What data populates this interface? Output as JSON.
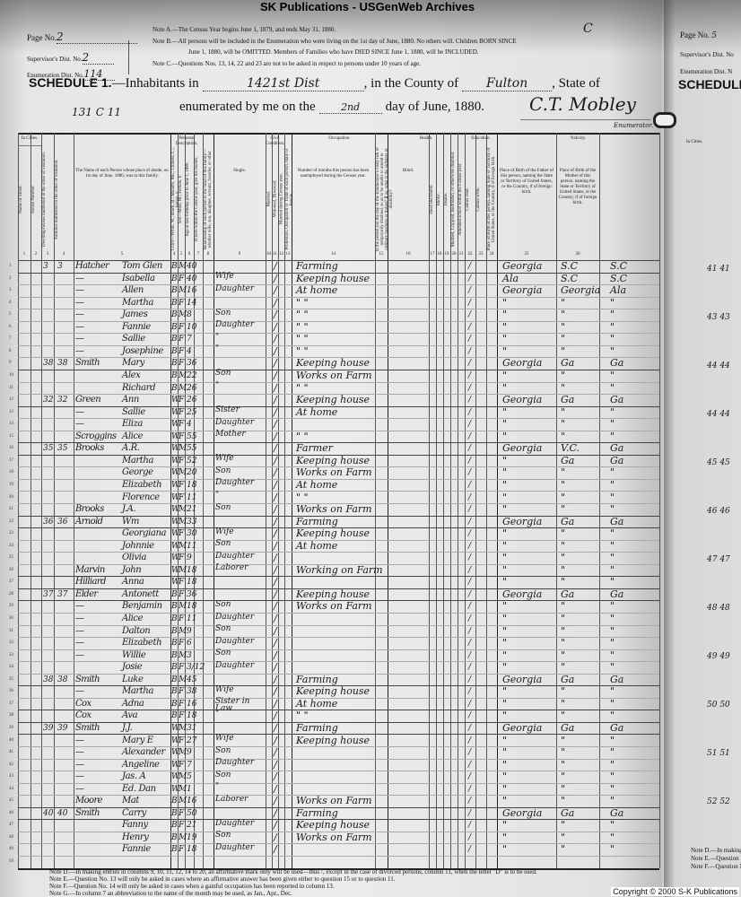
{
  "banner": "SK Publications - USGenWeb Archives",
  "header": {
    "page_label": "Page No.",
    "page_value": "2",
    "supervisor_label": "Supervisor's Dist. No.",
    "supervisor_value": "2",
    "enumeration_label": "Enumeration Dist. No.",
    "enumeration_value": "114",
    "note_a": "Note A.—The Census Year begins June 1, 1879, and ends May 31, 1880.",
    "note_b1": "Note B.—All persons will be included in the Enumeration who were living on the 1st day of June, 1880. No others will. Children BORN SINCE",
    "note_b2": "June 1, 1880, will be OMITTED. Members of Families who have DIED SINCE June 1, 1880, will be INCLUDED.",
    "note_c": "Note C.—Questions Nos. 13, 14, 22 and 23 are not to be asked in respect to persons under 10 years of age.",
    "corner_mark": "C",
    "schedule_label": "SCHEDULE 1.",
    "inhabitants_label": "—Inhabitants in",
    "inhabitants_value": "1421st Dist",
    "county_label": ", in the County of",
    "county_value": "Fulton",
    "state_label": ", State of",
    "enumerated_label": "enumerated by me on the",
    "day_value": "2nd",
    "day_label": "day of June, 1880.",
    "margin_note": "131 C 11",
    "enumerator_signature": "C.T. Mobley",
    "enumerator_label": "Enumerator."
  },
  "column_groups": {
    "in_cities": "In Cities.",
    "personal": "Personal Description.",
    "civil": "Civil Condition.",
    "occupation": "Occupation.",
    "health": "Health.",
    "education": "Education.",
    "nativity": "Nativity."
  },
  "columns": [
    {
      "num": "1",
      "label": "Name of Street."
    },
    {
      "num": "2",
      "label": "House Number."
    },
    {
      "num": "3",
      "label": "Dwelling-houses numbered in the order of visitation."
    },
    {
      "num": "4",
      "label": "Families numbered in the order of visitation."
    },
    {
      "num": "5",
      "label": "The Name of each Person whose place of abode, on 1st day of June, 1880, was in this family."
    },
    {
      "num": "4",
      "label": "Color—White, W.; Black, B.; Mulatto, Mu.; Chinese, C.; Indian, I."
    },
    {
      "num": "5",
      "label": "Sex—Male, M.; Female, F."
    },
    {
      "num": "6",
      "label": "Age at last birthday prior to June 1, 1880."
    },
    {
      "num": "7",
      "label": "If born within the Census year, give the month."
    },
    {
      "num": "8",
      "label": "Relationship of each person to the head of this family—whether wife, son, daughter, servant, boarder, or other."
    },
    {
      "num": "9",
      "label": "Single."
    },
    {
      "num": "10",
      "label": "Married."
    },
    {
      "num": "11",
      "label": "Widowed, Divorced."
    },
    {
      "num": "12",
      "label": "Married during Census year."
    },
    {
      "num": "13",
      "label": "Profession, Occupation or Trade of each person, male or female."
    },
    {
      "num": "14",
      "label": "Number of months this person has been unemployed during the Census year."
    },
    {
      "num": "15",
      "label": "Is the person (on the day of the Enumerator's visit) sick or temporarily disabled, so as to be unable to attend to ordinary business or duties? If so, what is the sickness or disability?"
    },
    {
      "num": "16",
      "label": "Blind."
    },
    {
      "num": "17",
      "label": "Deaf and Dumb."
    },
    {
      "num": "18",
      "label": "Idiotic."
    },
    {
      "num": "19",
      "label": "Insane."
    },
    {
      "num": "20",
      "label": "Maimed, Crippled, Bedridden, or otherwise disabled."
    },
    {
      "num": "21",
      "label": "Attended school within the Census year."
    },
    {
      "num": "22",
      "label": "Cannot read."
    },
    {
      "num": "23",
      "label": "Cannot write."
    },
    {
      "num": "24",
      "label": "Place of Birth of this person, naming State or Territory of United States, or the Country, if of foreign birth."
    },
    {
      "num": "25",
      "label": "Place of Birth of the Father of this person, naming the State or Territory of United States, or the Country, if of foreign birth."
    },
    {
      "num": "26",
      "label": "Place of Birth of the Mother of this person, naming the State or Territory of United States, or the Country, if of foreign birth."
    }
  ],
  "rows": [
    {
      "n": "1",
      "dw": "3",
      "fam": "3",
      "surname": "Hatcher",
      "given": "Tom Glen",
      "color": "B",
      "sex": "M",
      "age": "40",
      "rel": "",
      "mark": "/",
      "occ": "Farming",
      "bp": "Georgia",
      "fbp": "S.C",
      "mbp": "S.C"
    },
    {
      "n": "2",
      "dw": "",
      "fam": "",
      "surname": "—",
      "given": "Isabella",
      "color": "B",
      "sex": "F",
      "age": "40",
      "rel": "Wife",
      "mark": "/",
      "occ": "Keeping house",
      "bp": "Ala",
      "fbp": "S.C",
      "mbp": "S.C"
    },
    {
      "n": "3",
      "dw": "",
      "fam": "",
      "surname": "—",
      "given": "Allen",
      "color": "B",
      "sex": "M",
      "age": "16",
      "rel": "Daughter",
      "mark": "/",
      "occ": "At home",
      "bp": "Georgia",
      "fbp": "Georgia",
      "mbp": "Ala"
    },
    {
      "n": "4",
      "dw": "",
      "fam": "",
      "surname": "—",
      "given": "Martha",
      "color": "B",
      "sex": "F",
      "age": "14",
      "rel": "",
      "mark": "/",
      "occ": "\"   \"",
      "bp": "\"",
      "fbp": "\"",
      "mbp": "\""
    },
    {
      "n": "5",
      "dw": "",
      "fam": "",
      "surname": "—",
      "given": "James",
      "color": "B",
      "sex": "M",
      "age": "8",
      "rel": "Son",
      "mark": "/",
      "occ": "\"   \"",
      "bp": "\"",
      "fbp": "\"",
      "mbp": "\""
    },
    {
      "n": "6",
      "dw": "",
      "fam": "",
      "surname": "—",
      "given": "Fannie",
      "color": "B",
      "sex": "F",
      "age": "10",
      "rel": "Daughter",
      "mark": "/",
      "occ": "\"   \"",
      "bp": "\"",
      "fbp": "\"",
      "mbp": "\""
    },
    {
      "n": "7",
      "dw": "",
      "fam": "",
      "surname": "—",
      "given": "Sallie",
      "color": "B",
      "sex": "F",
      "age": "7",
      "rel": "\"",
      "mark": "/",
      "occ": "\"   \"",
      "bp": "\"",
      "fbp": "\"",
      "mbp": "\""
    },
    {
      "n": "8",
      "dw": "",
      "fam": "",
      "surname": "—",
      "given": "Josephine",
      "color": "B",
      "sex": "F",
      "age": "4",
      "rel": "\"",
      "mark": "/",
      "occ": "\"   \"",
      "bp": "\"",
      "fbp": "\"",
      "mbp": "\""
    },
    {
      "n": "9",
      "dw": "38",
      "fam": "38",
      "surname": "Smith",
      "given": "Mary",
      "color": "B",
      "sex": "F",
      "age": "36",
      "rel": "",
      "mark": "/",
      "occ": "Keeping house",
      "bp": "Georgia",
      "fbp": "Ga",
      "mbp": "Ga"
    },
    {
      "n": "10",
      "dw": "",
      "fam": "",
      "surname": "",
      "given": "Alex",
      "color": "B",
      "sex": "M",
      "age": "22",
      "rel": "Son",
      "mark": "/",
      "occ": "Works on Farm",
      "bp": "\"",
      "fbp": "\"",
      "mbp": "\""
    },
    {
      "n": "11",
      "dw": "",
      "fam": "",
      "surname": "",
      "given": "Richard",
      "color": "B",
      "sex": "M",
      "age": "26",
      "rel": "\"",
      "mark": "/",
      "occ": "\"   \"",
      "bp": "\"",
      "fbp": "\"",
      "mbp": "\""
    },
    {
      "n": "12",
      "dw": "32",
      "fam": "32",
      "surname": "Green",
      "given": "Ann",
      "color": "W",
      "sex": "F",
      "age": "26",
      "rel": "",
      "mark": "/",
      "occ": "Keeping house",
      "bp": "Georgia",
      "fbp": "Ga",
      "mbp": "Ga"
    },
    {
      "n": "13",
      "dw": "",
      "fam": "",
      "surname": "—",
      "given": "Sallie",
      "color": "W",
      "sex": "F",
      "age": "25",
      "rel": "Sister",
      "mark": "/",
      "occ": "At home",
      "bp": "\"",
      "fbp": "\"",
      "mbp": "\""
    },
    {
      "n": "14",
      "dw": "",
      "fam": "",
      "surname": "—",
      "given": "Eliza",
      "color": "W",
      "sex": "F",
      "age": "4",
      "rel": "Daughter",
      "mark": "/",
      "occ": "",
      "bp": "\"",
      "fbp": "\"",
      "mbp": "\""
    },
    {
      "n": "15",
      "dw": "",
      "fam": "",
      "surname": "Scroggins",
      "given": "Alice",
      "color": "W",
      "sex": "F",
      "age": "55",
      "rel": "Mother",
      "mark": "/",
      "occ": "\"   \"",
      "bp": "\"",
      "fbp": "\"",
      "mbp": "\""
    },
    {
      "n": "16",
      "dw": "35",
      "fam": "35",
      "surname": "Brooks",
      "given": "A.R.",
      "color": "W",
      "sex": "M",
      "age": "55",
      "rel": "",
      "mark": "/",
      "occ": "Farmer",
      "bp": "Georgia",
      "fbp": "V.C.",
      "mbp": "Ga"
    },
    {
      "n": "17",
      "dw": "",
      "fam": "",
      "surname": "",
      "given": "Martha",
      "color": "W",
      "sex": "F",
      "age": "52",
      "rel": "Wife",
      "mark": "/",
      "occ": "Keeping house",
      "bp": "\"",
      "fbp": "Ga",
      "mbp": "Ga"
    },
    {
      "n": "18",
      "dw": "",
      "fam": "",
      "surname": "",
      "given": "George",
      "color": "W",
      "sex": "M",
      "age": "20",
      "rel": "Son",
      "mark": "/",
      "occ": "Works on Farm",
      "bp": "\"",
      "fbp": "\"",
      "mbp": "\""
    },
    {
      "n": "19",
      "dw": "",
      "fam": "",
      "surname": "",
      "given": "Elizabeth",
      "color": "W",
      "sex": "F",
      "age": "18",
      "rel": "Daughter",
      "mark": "/",
      "occ": "At home",
      "bp": "\"",
      "fbp": "\"",
      "mbp": "\""
    },
    {
      "n": "20",
      "dw": "",
      "fam": "",
      "surname": "",
      "given": "Florence",
      "color": "W",
      "sex": "F",
      "age": "11",
      "rel": "\"",
      "mark": "/",
      "occ": "\"   \"",
      "bp": "\"",
      "fbp": "\"",
      "mbp": "\""
    },
    {
      "n": "21",
      "dw": "",
      "fam": "",
      "surname": "Brooks",
      "given": "J.A.",
      "color": "W",
      "sex": "M",
      "age": "21",
      "rel": "Son",
      "mark": "/",
      "occ": "Works on Farm",
      "bp": "\"",
      "fbp": "\"",
      "mbp": "\""
    },
    {
      "n": "22",
      "dw": "36",
      "fam": "36",
      "surname": "Arnold",
      "given": "Wm",
      "color": "W",
      "sex": "M",
      "age": "33",
      "rel": "",
      "mark": "/",
      "occ": "Farming",
      "bp": "Georgia",
      "fbp": "Ga",
      "mbp": "Ga"
    },
    {
      "n": "23",
      "dw": "",
      "fam": "",
      "surname": "",
      "given": "Georgiana",
      "color": "W",
      "sex": "F",
      "age": "30",
      "rel": "Wife",
      "mark": "/",
      "occ": "Keeping house",
      "bp": "\"",
      "fbp": "\"",
      "mbp": "\""
    },
    {
      "n": "24",
      "dw": "",
      "fam": "",
      "surname": "",
      "given": "Johnnie",
      "color": "W",
      "sex": "M",
      "age": "11",
      "rel": "Son",
      "mark": "/",
      "occ": "At home",
      "bp": "\"",
      "fbp": "\"",
      "mbp": "\""
    },
    {
      "n": "25",
      "dw": "",
      "fam": "",
      "surname": "",
      "given": "Olivia",
      "color": "W",
      "sex": "F",
      "age": "9",
      "rel": "Daughter",
      "mark": "/",
      "occ": "",
      "bp": "\"",
      "fbp": "\"",
      "mbp": "\""
    },
    {
      "n": "26",
      "dw": "",
      "fam": "",
      "surname": "Marvin",
      "given": "John",
      "color": "W",
      "sex": "M",
      "age": "18",
      "rel": "Laborer",
      "mark": "/",
      "occ": "Working on Farm",
      "bp": "\"",
      "fbp": "\"",
      "mbp": "\""
    },
    {
      "n": "27",
      "dw": "",
      "fam": "",
      "surname": "Hilliard",
      "given": "Anna",
      "color": "W",
      "sex": "F",
      "age": "18",
      "rel": "",
      "mark": "/",
      "occ": "",
      "bp": "\"",
      "fbp": "\"",
      "mbp": "\""
    },
    {
      "n": "28",
      "dw": "37",
      "fam": "37",
      "surname": "Elder",
      "given": "Antonett",
      "color": "B",
      "sex": "F",
      "age": "36",
      "rel": "",
      "mark": "/",
      "occ": "Keeping house",
      "bp": "Georgia",
      "fbp": "Ga",
      "mbp": "Ga"
    },
    {
      "n": "29",
      "dw": "",
      "fam": "",
      "surname": "—",
      "given": "Benjamin",
      "color": "B",
      "sex": "M",
      "age": "18",
      "rel": "Son",
      "mark": "/",
      "occ": "Works on Farm",
      "bp": "\"",
      "fbp": "\"",
      "mbp": "\""
    },
    {
      "n": "30",
      "dw": "",
      "fam": "",
      "surname": "—",
      "given": "Alice",
      "color": "B",
      "sex": "F",
      "age": "11",
      "rel": "Daughter",
      "mark": "/",
      "occ": "",
      "bp": "\"",
      "fbp": "\"",
      "mbp": "\""
    },
    {
      "n": "31",
      "dw": "",
      "fam": "",
      "surname": "—",
      "given": "Dalton",
      "color": "B",
      "sex": "M",
      "age": "9",
      "rel": "Son",
      "mark": "/",
      "occ": "",
      "bp": "\"",
      "fbp": "\"",
      "mbp": "\""
    },
    {
      "n": "32",
      "dw": "",
      "fam": "",
      "surname": "—",
      "given": "Elizabeth",
      "color": "B",
      "sex": "F",
      "age": "6",
      "rel": "Daughter",
      "mark": "/",
      "occ": "",
      "bp": "\"",
      "fbp": "\"",
      "mbp": "\""
    },
    {
      "n": "33",
      "dw": "",
      "fam": "",
      "surname": "—",
      "given": "Willie",
      "color": "B",
      "sex": "M",
      "age": "3",
      "rel": "Son",
      "mark": "/",
      "occ": "",
      "bp": "\"",
      "fbp": "\"",
      "mbp": "\""
    },
    {
      "n": "34",
      "dw": "",
      "fam": "",
      "surname": "",
      "given": "Josie",
      "color": "B",
      "sex": "F",
      "age": "3/12",
      "rel": "Daughter",
      "mark": "/",
      "occ": "",
      "bp": "\"",
      "fbp": "\"",
      "mbp": "\""
    },
    {
      "n": "35",
      "dw": "38",
      "fam": "38",
      "surname": "Smith",
      "given": "Luke",
      "color": "B",
      "sex": "M",
      "age": "45",
      "rel": "",
      "mark": "/",
      "occ": "Farming",
      "bp": "Georgia",
      "fbp": "Ga",
      "mbp": "Ga"
    },
    {
      "n": "36",
      "dw": "",
      "fam": "",
      "surname": "—",
      "given": "Martha",
      "color": "B",
      "sex": "F",
      "age": "38",
      "rel": "Wife",
      "mark": "/",
      "occ": "Keeping house",
      "bp": "\"",
      "fbp": "\"",
      "mbp": "\""
    },
    {
      "n": "37",
      "dw": "",
      "fam": "",
      "surname": "Cox",
      "given": "Adna",
      "color": "B",
      "sex": "F",
      "age": "16",
      "rel": "Sister in Law",
      "mark": "/",
      "occ": "At home",
      "bp": "\"",
      "fbp": "\"",
      "mbp": "\""
    },
    {
      "n": "38",
      "dw": "",
      "fam": "",
      "surname": "Cox",
      "given": "Ava",
      "color": "B",
      "sex": "F",
      "age": "18",
      "rel": "\"",
      "mark": "/",
      "occ": "\"   \"",
      "bp": "\"",
      "fbp": "\"",
      "mbp": "\""
    },
    {
      "n": "39",
      "dw": "39",
      "fam": "39",
      "surname": "Smith",
      "given": "J.J.",
      "color": "W",
      "sex": "M",
      "age": "31",
      "rel": "",
      "mark": "/",
      "occ": "Farming",
      "bp": "Georgia",
      "fbp": "Ga",
      "mbp": "Ga"
    },
    {
      "n": "40",
      "dw": "",
      "fam": "",
      "surname": "—",
      "given": "Mary E",
      "color": "W",
      "sex": "F",
      "age": "27",
      "rel": "Wife",
      "mark": "/",
      "occ": "Keeping house",
      "bp": "\"",
      "fbp": "\"",
      "mbp": "\""
    },
    {
      "n": "41",
      "dw": "",
      "fam": "",
      "surname": "—",
      "given": "Alexander",
      "color": "W",
      "sex": "M",
      "age": "9",
      "rel": "Son",
      "mark": "/",
      "occ": "",
      "bp": "\"",
      "fbp": "\"",
      "mbp": "\""
    },
    {
      "n": "42",
      "dw": "",
      "fam": "",
      "surname": "—",
      "given": "Angeline",
      "color": "W",
      "sex": "F",
      "age": "7",
      "rel": "Daughter",
      "mark": "/",
      "occ": "",
      "bp": "\"",
      "fbp": "\"",
      "mbp": "\""
    },
    {
      "n": "43",
      "dw": "",
      "fam": "",
      "surname": "—",
      "given": "Jas. A",
      "color": "W",
      "sex": "M",
      "age": "5",
      "rel": "Son",
      "mark": "/",
      "occ": "",
      "bp": "\"",
      "fbp": "\"",
      "mbp": "\""
    },
    {
      "n": "44",
      "dw": "",
      "fam": "",
      "surname": "—",
      "given": "Ed. Dan",
      "color": "W",
      "sex": "M",
      "age": "1",
      "rel": "\"",
      "mark": "/",
      "occ": "",
      "bp": "\"",
      "fbp": "\"",
      "mbp": "\""
    },
    {
      "n": "45",
      "dw": "",
      "fam": "",
      "surname": "Moore",
      "given": "Mat",
      "color": "B",
      "sex": "M",
      "age": "16",
      "rel": "Laborer",
      "mark": "/",
      "occ": "Works on Farm",
      "bp": "\"",
      "fbp": "\"",
      "mbp": "\""
    },
    {
      "n": "46",
      "dw": "40",
      "fam": "40",
      "surname": "Smith",
      "given": "Carry",
      "color": "B",
      "sex": "F",
      "age": "50",
      "rel": "",
      "mark": "/",
      "occ": "Farming",
      "bp": "Georgia",
      "fbp": "Ga",
      "mbp": "Ga"
    },
    {
      "n": "47",
      "dw": "",
      "fam": "",
      "surname": "",
      "given": "Fanny",
      "color": "B",
      "sex": "F",
      "age": "21",
      "rel": "Daughter",
      "mark": "/",
      "occ": "Keeping house",
      "bp": "\"",
      "fbp": "\"",
      "mbp": "\""
    },
    {
      "n": "48",
      "dw": "",
      "fam": "",
      "surname": "",
      "given": "Henry",
      "color": "B",
      "sex": "M",
      "age": "19",
      "rel": "Son",
      "mark": "/",
      "occ": "Works on Farm",
      "bp": "\"",
      "fbp": "\"",
      "mbp": "\""
    },
    {
      "n": "49",
      "dw": "",
      "fam": "",
      "surname": "",
      "given": "Fannie",
      "color": "B",
      "sex": "F",
      "age": "18",
      "rel": "Daughter",
      "mark": "/",
      "occ": "",
      "bp": "\"",
      "fbp": "\"",
      "mbp": "\""
    },
    {
      "n": "50",
      "dw": "",
      "fam": "",
      "surname": "",
      "given": "",
      "color": "",
      "sex": "",
      "age": "",
      "rel": "",
      "mark": "",
      "occ": "",
      "bp": "",
      "fbp": "",
      "mbp": ""
    }
  ],
  "footer": {
    "note_d": "Note D.—In making entries in columns 9, 10, 11, 12, 14 to 20, an affirmative mark only will be used—thus /, except in the case of divorced persons, column 11, when the letter \"D\" is to be used.",
    "note_e": "Note E.—Question No. 13 will only be asked in cases where an affirmative answer has been given either to question 15 or to question 11.",
    "note_f": "Note F.—Question No. 14 will only be asked in cases when a gainful occupation has been reported in column 13.",
    "note_g": "Note G.—In column 7 an abbreviation to the name of the month may be used, as Jan., Apr., Dec."
  },
  "copyright": "Copyright © 2000 S-K Publications",
  "next_page": {
    "page_label": "Page No.",
    "page_value": "5",
    "supervisor_label": "Supervisor's Dist. No",
    "enumeration_label": "Enumeration Dist. N",
    "schedule_label": "SCHEDULE 1.",
    "in_cities": "In Cities.",
    "entries": [
      "41 41",
      "43 43",
      "44 44",
      "44 44",
      "45 45",
      "46 46",
      "47 47",
      "48 48",
      "49 49",
      "50 50",
      "51 51",
      "52 52"
    ],
    "footer": [
      "Note D.—In making",
      "Note E.—Question N",
      "Note F.—Question N"
    ]
  }
}
